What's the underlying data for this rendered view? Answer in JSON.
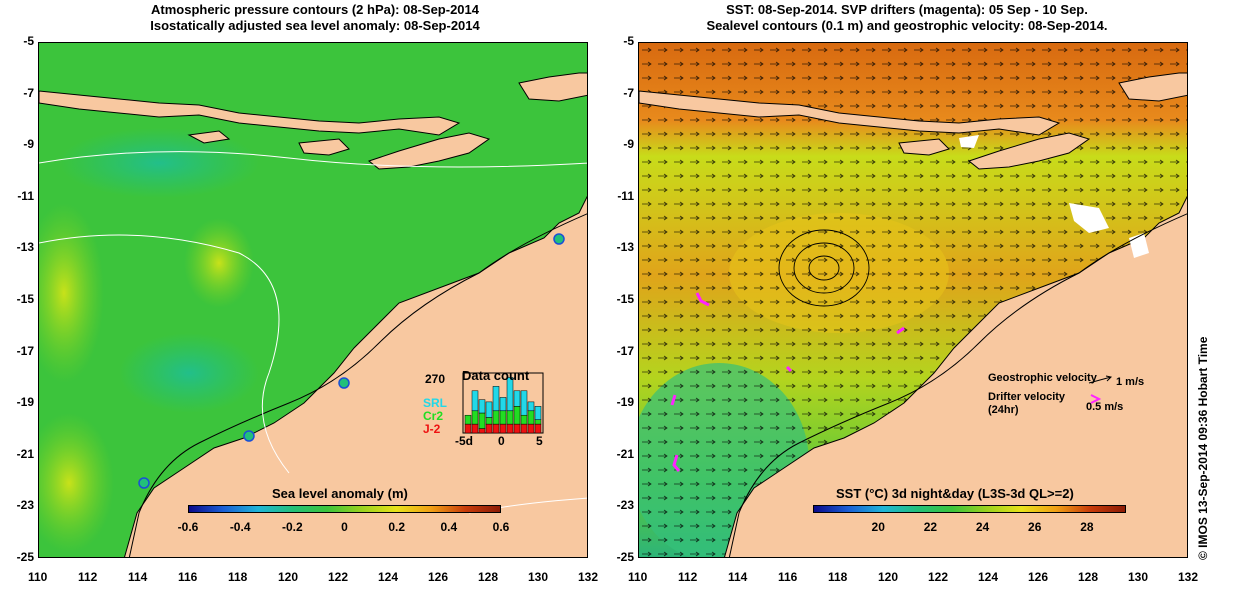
{
  "left": {
    "title_line1": "Atmospheric pressure contours (2 hPa): 08-Sep-2014",
    "title_line2": "Isostatically adjusted sea level anomaly: 08-Sep-2014",
    "colorbar_label": "Sea level anomaly (m)",
    "colorbar_ticks": [
      "-0.6",
      "-0.4",
      "-0.2",
      "0",
      "0.2",
      "0.4",
      "0.6"
    ],
    "colorbar_range": [
      -0.6,
      0.6
    ],
    "colorbar_colors": [
      "#0a0a8c",
      "#1a5fd6",
      "#1fb5d8",
      "#22c07a",
      "#3cc43c",
      "#9ad21e",
      "#e8e21a",
      "#f0a016",
      "#c83c0a",
      "#8c1c06"
    ],
    "data_count": {
      "title": "Data count",
      "max_label": "270",
      "satellites": [
        {
          "name": "SRL",
          "color": "#22d8e8"
        },
        {
          "name": "Cr2",
          "color": "#22dd22"
        },
        {
          "name": "J-2",
          "color": "#ee1111"
        }
      ],
      "xticks": [
        "-5d",
        "0",
        "5"
      ],
      "days": [
        -5,
        -4,
        -3,
        -2,
        -1,
        0,
        1,
        2,
        3,
        4,
        5
      ],
      "counts_srl": [
        0,
        90,
        60,
        70,
        110,
        60,
        150,
        70,
        110,
        40,
        60
      ],
      "counts_cr2": [
        40,
        60,
        70,
        30,
        60,
        60,
        60,
        80,
        40,
        60,
        20
      ],
      "counts_j2": [
        40,
        40,
        20,
        40,
        40,
        40,
        40,
        40,
        40,
        40,
        40
      ]
    }
  },
  "right": {
    "title_line1": "SST: 08-Sep-2014. SVP drifters (magenta): 05 Sep - 10 Sep.",
    "title_line2": "Sealevel contours (0.1 m) and geostrophic velocity: 08-Sep-2014.",
    "colorbar_label": "SST (°C) 3d night&day (L3S-3d QL>=2)",
    "colorbar_ticks": [
      "20",
      "22",
      "24",
      "26",
      "28"
    ],
    "colorbar_range": [
      17.5,
      29.5
    ],
    "colorbar_colors": [
      "#0a0a8c",
      "#1a5fd6",
      "#1fb5d8",
      "#22c07a",
      "#3cc43c",
      "#9ad21e",
      "#e8e21a",
      "#f0a016",
      "#c83c0a",
      "#8c1c06"
    ],
    "legend": {
      "geostrophic": "Geostrophic velocity",
      "geostrophic_scale": "1 m/s",
      "drifter_line1": "Drifter velocity",
      "drifter_line2": "(24hr)",
      "drifter_scale": "0.5 m/s"
    }
  },
  "axes": {
    "xticks": [
      "110",
      "112",
      "114",
      "116",
      "118",
      "120",
      "122",
      "124",
      "126",
      "128",
      "130",
      "132"
    ],
    "yticks": [
      "-5",
      "-7",
      "-9",
      "-11",
      "-13",
      "-15",
      "-17",
      "-19",
      "-21",
      "-23",
      "-25"
    ],
    "lon_range": [
      110,
      132
    ],
    "lat_range": [
      -25,
      -5
    ]
  },
  "colors": {
    "land": "#f8c8a0",
    "ocean_left": "#3cc43c",
    "ocean_right_north": "#e88a1c",
    "ocean_right_south": "#9ad21e",
    "drifter": "#ff22ff"
  },
  "copyright": "© IMOS 13-Sep-2014 09:36 Hobart Time"
}
